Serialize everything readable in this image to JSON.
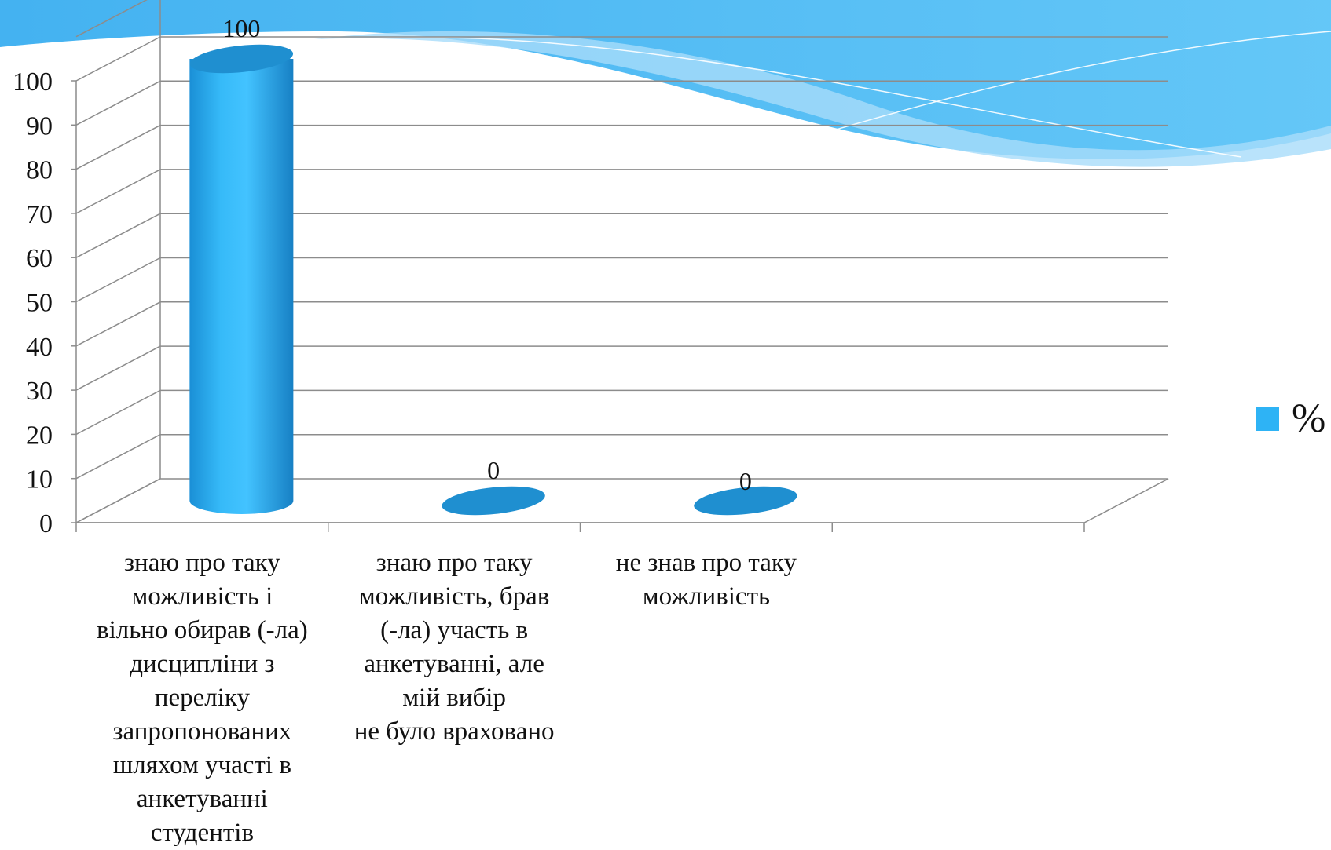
{
  "chart_data": {
    "type": "bar",
    "style": "3d-cylinder",
    "categories": [
      "знаю про таку можливість і вільно обирав (-ла) дисципліни з переліку запропонованих шляхом участі в анкетуванні студентів",
      "знаю про таку можливість, брав (-ла) участь в анкетуванні, але мій вибір не було враховано",
      "не знав про таку можливість"
    ],
    "category_label_lines": [
      [
        "знаю про таку",
        "можливість і",
        "вільно обирав (-ла)",
        "дисципліни з",
        "переліку",
        "запропонованих",
        "шляхом участі в",
        "анкетуванні",
        "студентів"
      ],
      [
        "знаю про таку",
        "можливість, брав",
        "(-ла) участь в",
        "анкетуванні, але",
        "мій вибір",
        "не було враховано"
      ],
      [
        "не знав про таку",
        "можливість"
      ]
    ],
    "series": [
      {
        "name": "%",
        "values": [
          100,
          0,
          0
        ],
        "color": "#2eb3f5"
      }
    ],
    "data_labels": [
      "100",
      "0",
      "0"
    ],
    "y_ticks": [
      "0",
      "10",
      "20",
      "30",
      "40",
      "50",
      "60",
      "70",
      "80",
      "90",
      "100"
    ],
    "ylim": [
      0,
      100
    ],
    "grid": true,
    "legend_position": "right",
    "legend_label": "%",
    "colors": {
      "bar": "#2eb3f5",
      "bar_top": "#1f8fd0",
      "grid": "#8c8c8c",
      "wave": "#4fb8f2"
    }
  }
}
